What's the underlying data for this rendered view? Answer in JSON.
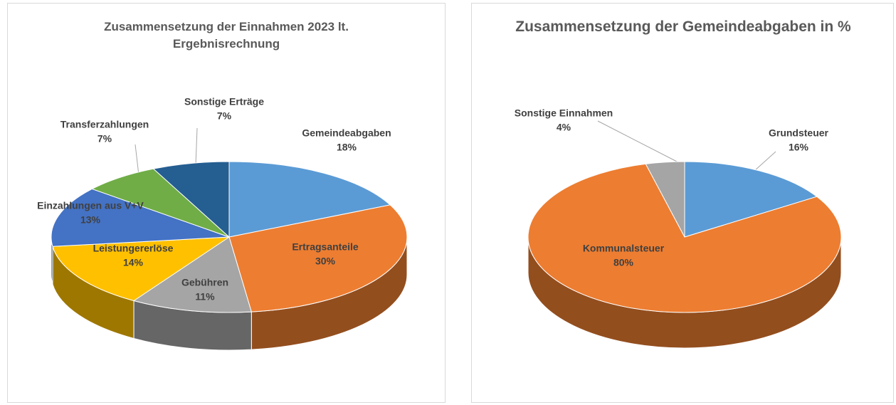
{
  "chart_data": [
    {
      "type": "pie",
      "title": "Zusammensetzung der Einnahmen 2023 lt. Ergebnisrechnung",
      "categories": [
        "Gemeindeabgaben",
        "Ertragsanteile",
        "Gebühren",
        "Leistungererlöse",
        "Einzahlungen aus V+V",
        "Transferzahlungen",
        "Sonstige Erträge"
      ],
      "values": [
        18,
        30,
        11,
        14,
        13,
        7,
        7
      ],
      "value_labels": [
        "18%",
        "30%",
        "11%",
        "14%",
        "13%",
        "7%",
        "7%"
      ],
      "colors": [
        "#5b9bd5",
        "#ed7d31",
        "#a5a5a5",
        "#ffc000",
        "#4472c4",
        "#70ad47",
        "#255e91"
      ]
    },
    {
      "type": "pie",
      "title": "Zusammensetzung der Gemeindeabgaben in %",
      "categories": [
        "Grundsteuer",
        "Kommunalsteuer",
        "Sonstige Einnahmen"
      ],
      "values": [
        16,
        80,
        4
      ],
      "value_labels": [
        "16%",
        "80%",
        "4%"
      ],
      "colors": [
        "#5b9bd5",
        "#ed7d31",
        "#a5a5a5"
      ]
    }
  ]
}
